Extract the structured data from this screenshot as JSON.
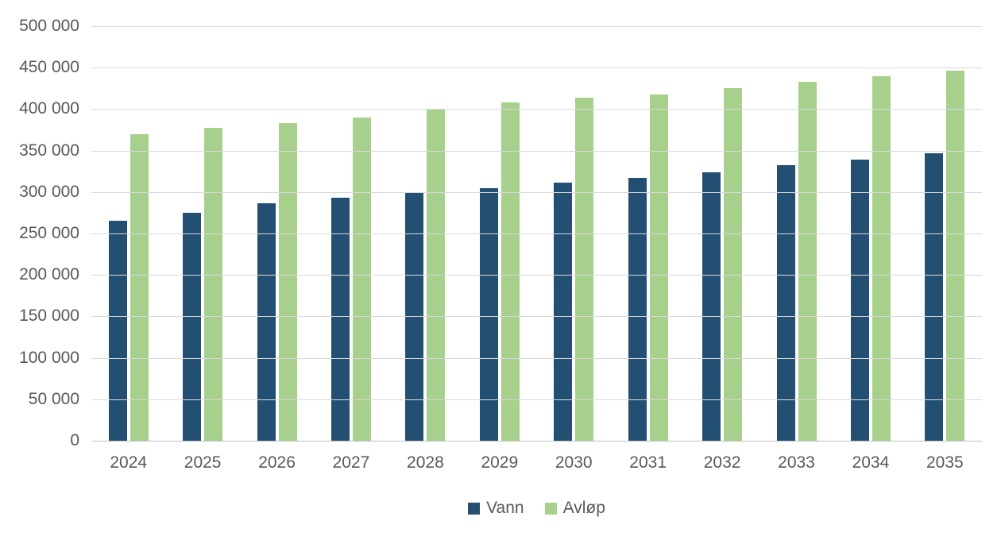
{
  "chart_data": {
    "type": "bar",
    "title": "",
    "xlabel": "",
    "ylabel": "",
    "categories": [
      "2024",
      "2025",
      "2026",
      "2027",
      "2028",
      "2029",
      "2030",
      "2031",
      "2032",
      "2033",
      "2034",
      "2035"
    ],
    "series": [
      {
        "name": "Vann",
        "color": "#234f73",
        "values": [
          265000,
          275000,
          286000,
          293000,
          299000,
          305000,
          311000,
          317000,
          324000,
          332000,
          339000,
          347000
        ]
      },
      {
        "name": "Avløp",
        "color": "#a8d08d",
        "values": [
          370000,
          377000,
          383000,
          390000,
          400000,
          408000,
          414000,
          418000,
          425000,
          433000,
          440000,
          446000
        ]
      }
    ],
    "ylim": [
      0,
      500000
    ],
    "ytick_step": 50000,
    "ytick_labels": [
      "0",
      "50 000",
      "100 000",
      "150 000",
      "200 000",
      "250 000",
      "300 000",
      "350 000",
      "400 000",
      "450 000",
      "500 000"
    ],
    "grid": true,
    "legend_position": "bottom",
    "colors": {
      "gridline": "#d9d9d9",
      "axis_line": "#bfbfbf",
      "text": "#595959"
    }
  }
}
